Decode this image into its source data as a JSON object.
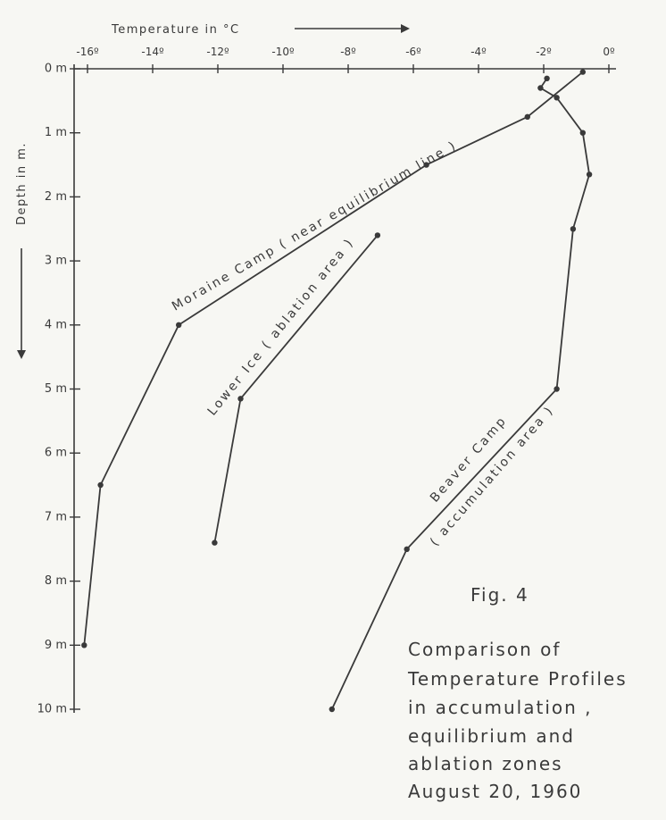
{
  "chart_data": {
    "type": "line",
    "x_axis": {
      "label": "Temperature in °C",
      "ticks": [
        "-16º",
        "-14º",
        "-12º",
        "-10º",
        "-8º",
        "-6º",
        "-4º",
        "-2º",
        "0º"
      ],
      "range": [
        -16,
        0
      ],
      "position": "top"
    },
    "y_axis": {
      "label": "Depth in m.",
      "ticks": [
        "0 m",
        "1 m",
        "2 m",
        "3 m",
        "4 m",
        "5 m",
        "6 m",
        "7 m",
        "8 m",
        "9 m",
        "10 m"
      ],
      "range": [
        0,
        10
      ],
      "inverted": true
    },
    "series": [
      {
        "name": "Moraine Camp (near equilibrium line)",
        "points": [
          {
            "t": -0.8,
            "d": 0.05
          },
          {
            "t": -2.5,
            "d": 0.75
          },
          {
            "t": -5.6,
            "d": 1.5
          },
          {
            "t": -13.2,
            "d": 4.0
          },
          {
            "t": -15.6,
            "d": 6.5
          },
          {
            "t": -16.1,
            "d": 9.0
          }
        ]
      },
      {
        "name": "Lower Ice (ablation area)",
        "points": [
          {
            "t": -7.1,
            "d": 2.6
          },
          {
            "t": -11.3,
            "d": 5.15
          },
          {
            "t": -12.1,
            "d": 7.4
          }
        ]
      },
      {
        "name": "Beaver Camp (accumulation area)",
        "points": [
          {
            "t": -1.9,
            "d": 0.15
          },
          {
            "t": -2.1,
            "d": 0.3
          },
          {
            "t": -1.6,
            "d": 0.45
          },
          {
            "t": -0.8,
            "d": 1.0
          },
          {
            "t": -0.6,
            "d": 1.65
          },
          {
            "t": -1.1,
            "d": 2.5
          },
          {
            "t": -1.6,
            "d": 5.0
          },
          {
            "t": -6.2,
            "d": 7.5
          },
          {
            "t": -8.5,
            "d": 10.0
          }
        ]
      }
    ]
  },
  "labels": {
    "moraine": "Moraine Camp ( near equilibrium line )",
    "lower_ice": "Lower Ice ( ablation area )",
    "beaver_1": "Beaver Camp",
    "beaver_2": "( accumulation area )"
  },
  "caption": {
    "fig": "Fig. 4",
    "line1": "Comparison of",
    "line2": "Temperature Profiles",
    "line3": "in accumulation ,",
    "line4": "equilibrium and",
    "line5": "ablation zones",
    "line6": "August 20, 1960"
  },
  "colors": {
    "ink": "#3a3a3a",
    "paper": "#f7f7f3"
  }
}
